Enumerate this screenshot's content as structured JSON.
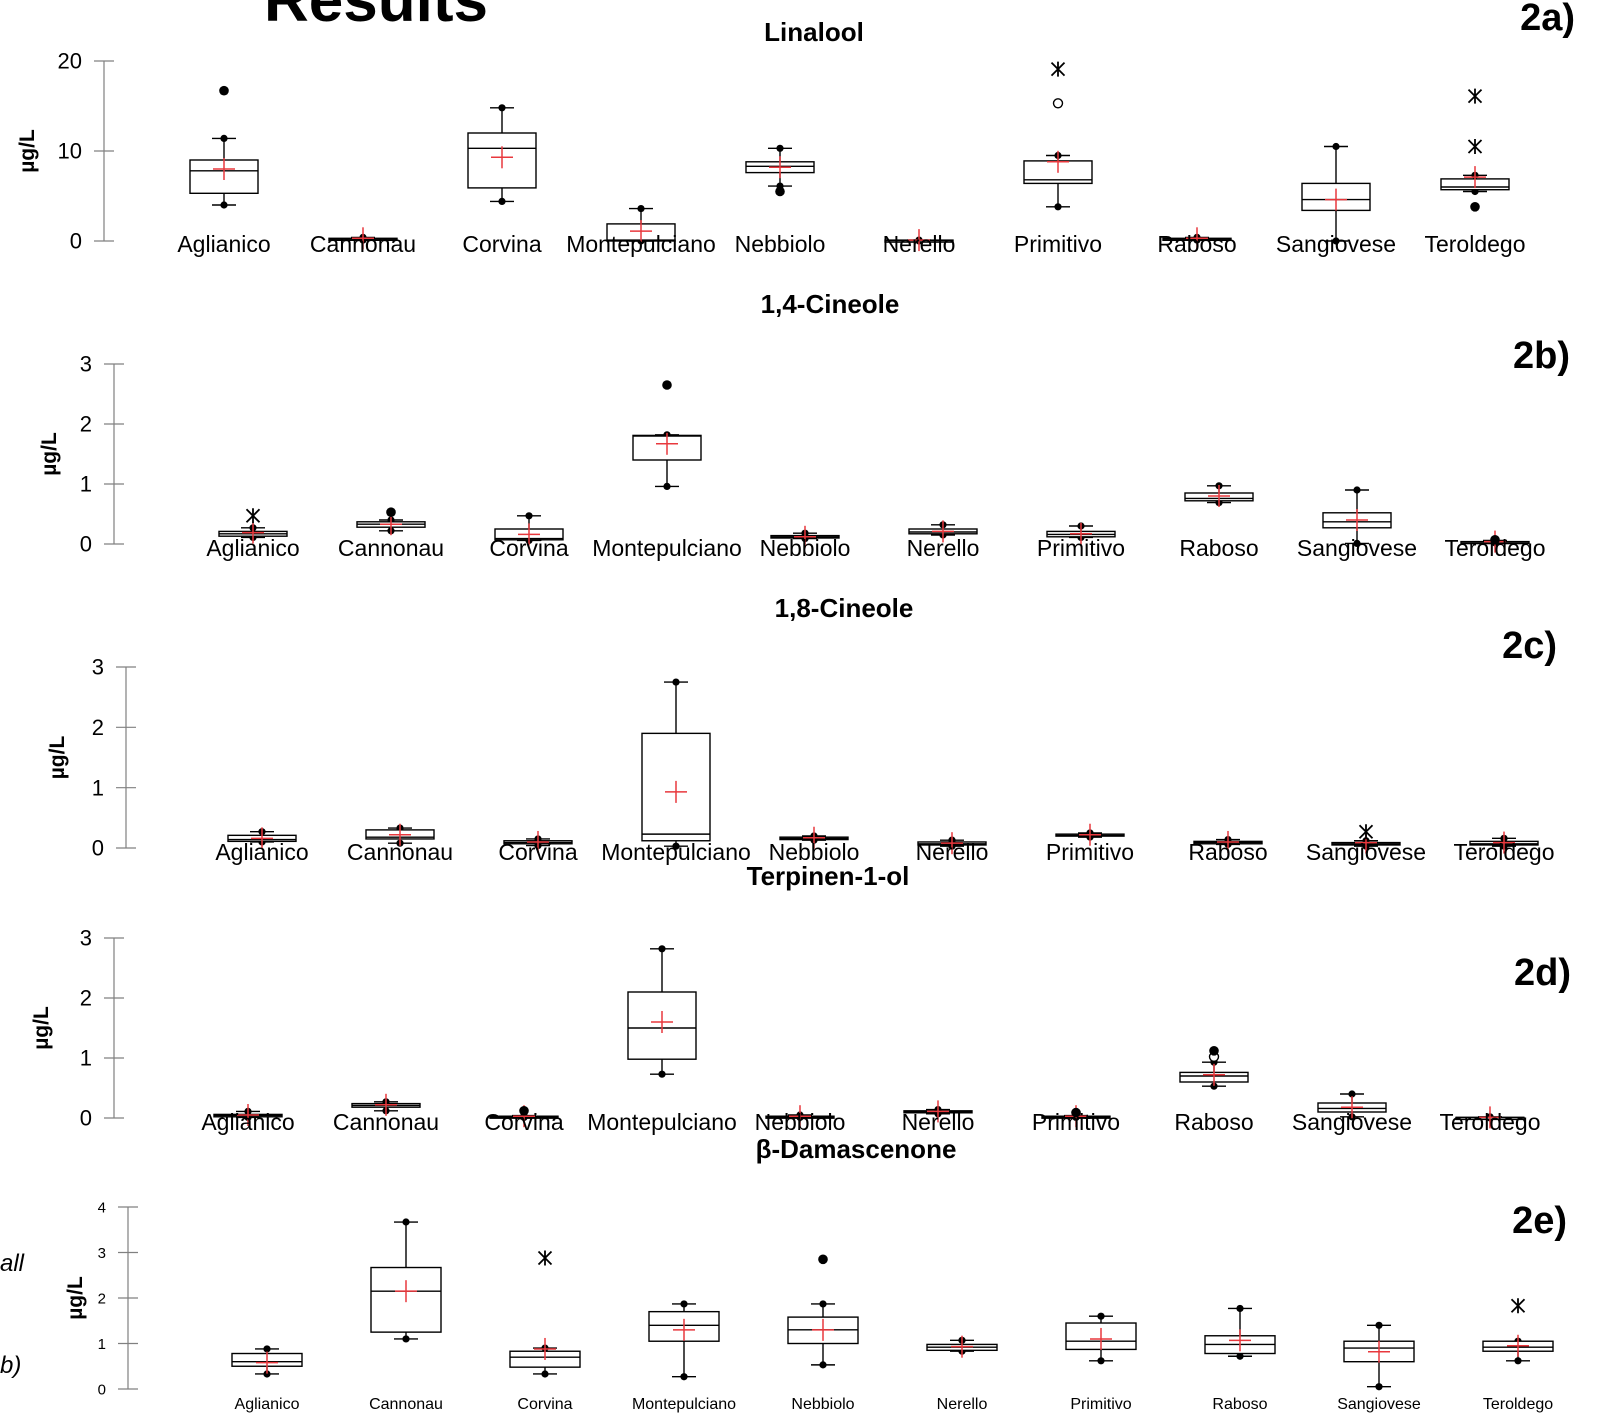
{
  "page": {
    "heading": "Results",
    "side_fragments": [
      "all",
      "b)"
    ]
  },
  "colors": {
    "box": "#000000",
    "mean": "#e8383d",
    "axis": "#808080"
  },
  "chart_data": [
    {
      "type": "box",
      "panel_label": "2a)",
      "title": "Linalool",
      "ylabel": "µg/L",
      "ylim": [
        0,
        20
      ],
      "yticks": [
        0,
        10,
        20
      ],
      "categories": [
        "Aglianico",
        "Cannonau",
        "Corvina",
        "Montepulciano",
        "Nebbiolo",
        "Nerello",
        "Primitivo",
        "Raboso",
        "Sangiovese",
        "Teroldego"
      ],
      "boxes": [
        {
          "min": 4.0,
          "q1": 5.3,
          "median": 7.8,
          "q3": 9.0,
          "max": 11.4,
          "mean": 8.0,
          "outliers": [
            {
              "v": 16.7,
              "m": "dot"
            }
          ]
        },
        {
          "min": 0.1,
          "q1": 0.15,
          "median": 0.2,
          "q3": 0.3,
          "max": 0.4,
          "mean": 0.3,
          "outliers": []
        },
        {
          "min": 4.4,
          "q1": 5.9,
          "median": 10.3,
          "q3": 12.0,
          "max": 14.8,
          "mean": 9.3,
          "outliers": []
        },
        {
          "min": 0.0,
          "q1": 0.0,
          "median": 0.1,
          "q3": 1.9,
          "max": 3.6,
          "mean": 1.1,
          "outliers": []
        },
        {
          "min": 6.1,
          "q1": 7.6,
          "median": 8.3,
          "q3": 8.8,
          "max": 10.3,
          "mean": 8.2,
          "outliers": [
            {
              "v": 5.5,
              "m": "dot"
            }
          ]
        },
        {
          "min": 0.0,
          "q1": 0.0,
          "median": 0.05,
          "q3": 0.1,
          "max": 0.1,
          "mean": 0.1,
          "outliers": []
        },
        {
          "min": 3.8,
          "q1": 6.4,
          "median": 6.8,
          "q3": 8.9,
          "max": 9.5,
          "mean": 8.8,
          "outliers": [
            {
              "v": 15.3,
              "m": "circle"
            },
            {
              "v": 19.1,
              "m": "star"
            }
          ]
        },
        {
          "min": 0.1,
          "q1": 0.15,
          "median": 0.2,
          "q3": 0.3,
          "max": 0.4,
          "mean": 0.3,
          "outliers": []
        },
        {
          "min": 0.0,
          "q1": 3.4,
          "median": 4.6,
          "q3": 6.4,
          "max": 10.5,
          "mean": 4.6,
          "outliers": []
        },
        {
          "min": 5.5,
          "q1": 5.7,
          "median": 6.0,
          "q3": 6.9,
          "max": 7.3,
          "mean": 7.1,
          "outliers": [
            {
              "v": 3.8,
              "m": "dot"
            },
            {
              "v": 10.5,
              "m": "star"
            },
            {
              "v": 16.1,
              "m": "star"
            }
          ]
        }
      ]
    },
    {
      "type": "box",
      "panel_label": "2b)",
      "title": "1,4-Cineole",
      "ylabel": "µg/L",
      "ylim": [
        0,
        3
      ],
      "yticks": [
        0,
        1,
        2,
        3
      ],
      "categories": [
        "Aglianico",
        "Cannonau",
        "Corvina",
        "Montepulciano",
        "Nebbiolo",
        "Nerello",
        "Primitivo",
        "Raboso",
        "Sangiovese",
        "Teroldego"
      ],
      "boxes": [
        {
          "min": 0.11,
          "q1": 0.13,
          "median": 0.17,
          "q3": 0.21,
          "max": 0.27,
          "mean": 0.19,
          "outliers": [
            {
              "v": 0.47,
              "m": "star"
            }
          ]
        },
        {
          "min": 0.22,
          "q1": 0.28,
          "median": 0.33,
          "q3": 0.37,
          "max": 0.4,
          "mean": 0.33,
          "outliers": [
            {
              "v": 0.53,
              "m": "dot"
            }
          ]
        },
        {
          "min": 0.06,
          "q1": 0.07,
          "median": 0.09,
          "q3": 0.25,
          "max": 0.47,
          "mean": 0.16,
          "outliers": []
        },
        {
          "min": 0.96,
          "q1": 1.4,
          "median": 1.8,
          "q3": 1.81,
          "max": 1.82,
          "mean": 1.67,
          "outliers": [
            {
              "v": 2.65,
              "m": "dot"
            }
          ]
        },
        {
          "min": 0.09,
          "q1": 0.1,
          "median": 0.12,
          "q3": 0.14,
          "max": 0.18,
          "mean": 0.12,
          "outliers": []
        },
        {
          "min": 0.15,
          "q1": 0.17,
          "median": 0.2,
          "q3": 0.25,
          "max": 0.32,
          "mean": 0.21,
          "outliers": []
        },
        {
          "min": 0.11,
          "q1": 0.12,
          "median": 0.16,
          "q3": 0.21,
          "max": 0.3,
          "mean": 0.17,
          "outliers": []
        },
        {
          "min": 0.69,
          "q1": 0.72,
          "median": 0.76,
          "q3": 0.85,
          "max": 0.97,
          "mean": 0.8,
          "outliers": []
        },
        {
          "min": 0.01,
          "q1": 0.27,
          "median": 0.37,
          "q3": 0.52,
          "max": 0.9,
          "mean": 0.4,
          "outliers": []
        },
        {
          "min": 0.02,
          "q1": 0.02,
          "median": 0.03,
          "q3": 0.04,
          "max": 0.06,
          "mean": 0.04,
          "outliers": [
            {
              "v": 0.07,
              "m": "dot"
            }
          ]
        }
      ]
    },
    {
      "type": "box",
      "panel_label": "2c)",
      "title": "1,8-Cineole",
      "ylabel": "µg/L",
      "ylim": [
        0,
        3
      ],
      "yticks": [
        0,
        1,
        2,
        3
      ],
      "categories": [
        "Aglianico",
        "Cannonau",
        "Corvina",
        "Montepulciano",
        "Nebbiolo",
        "Nerello",
        "Primitivo",
        "Raboso",
        "Sangiovese",
        "Teroldego"
      ],
      "boxes": [
        {
          "min": 0.1,
          "q1": 0.11,
          "median": 0.14,
          "q3": 0.21,
          "max": 0.27,
          "mean": 0.16,
          "outliers": []
        },
        {
          "min": 0.08,
          "q1": 0.15,
          "median": 0.18,
          "q3": 0.3,
          "max": 0.33,
          "mean": 0.22,
          "outliers": []
        },
        {
          "min": 0.04,
          "q1": 0.07,
          "median": 0.09,
          "q3": 0.12,
          "max": 0.15,
          "mean": 0.1,
          "outliers": []
        },
        {
          "min": 0.03,
          "q1": 0.12,
          "median": 0.23,
          "q3": 1.9,
          "max": 2.75,
          "mean": 0.93,
          "outliers": []
        },
        {
          "min": 0.13,
          "q1": 0.14,
          "median": 0.16,
          "q3": 0.18,
          "max": 0.2,
          "mean": 0.17,
          "outliers": []
        },
        {
          "min": 0.03,
          "q1": 0.05,
          "median": 0.07,
          "q3": 0.1,
          "max": 0.13,
          "mean": 0.08,
          "outliers": []
        },
        {
          "min": 0.18,
          "q1": 0.2,
          "median": 0.21,
          "q3": 0.23,
          "max": 0.25,
          "mean": 0.22,
          "outliers": []
        },
        {
          "min": 0.06,
          "q1": 0.07,
          "median": 0.09,
          "q3": 0.11,
          "max": 0.14,
          "mean": 0.1,
          "outliers": []
        },
        {
          "min": 0.03,
          "q1": 0.05,
          "median": 0.07,
          "q3": 0.09,
          "max": 0.12,
          "mean": 0.09,
          "outliers": [
            {
              "v": 0.27,
              "m": "star"
            }
          ]
        },
        {
          "min": 0.03,
          "q1": 0.05,
          "median": 0.07,
          "q3": 0.11,
          "max": 0.16,
          "mean": 0.09,
          "outliers": []
        }
      ]
    },
    {
      "type": "box",
      "panel_label": "2d)",
      "title": "Terpinen-1-ol",
      "ylabel": "µg/L",
      "ylim": [
        0,
        3
      ],
      "yticks": [
        0,
        1,
        2,
        3
      ],
      "categories": [
        "Aglianico",
        "Cannonau",
        "Corvina",
        "Montepulciano",
        "Nebbiolo",
        "Nerello",
        "Primitivo",
        "Raboso",
        "Sangiovese",
        "Teroldego"
      ],
      "boxes": [
        {
          "min": 0.01,
          "q1": 0.02,
          "median": 0.04,
          "q3": 0.06,
          "max": 0.11,
          "mean": 0.05,
          "outliers": []
        },
        {
          "min": 0.12,
          "q1": 0.18,
          "median": 0.21,
          "q3": 0.24,
          "max": 0.27,
          "mean": 0.22,
          "outliers": []
        },
        {
          "min": 0.01,
          "q1": 0.01,
          "median": 0.02,
          "q3": 0.03,
          "max": 0.04,
          "mean": 0.03,
          "outliers": [
            {
              "v": 0.12,
              "m": "dot"
            }
          ]
        },
        {
          "min": 0.73,
          "q1": 0.98,
          "median": 1.5,
          "q3": 2.1,
          "max": 2.82,
          "mean": 1.6,
          "outliers": []
        },
        {
          "min": 0.01,
          "q1": 0.01,
          "median": 0.02,
          "q3": 0.03,
          "max": 0.05,
          "mean": 0.03,
          "outliers": []
        },
        {
          "min": 0.07,
          "q1": 0.09,
          "median": 0.1,
          "q3": 0.12,
          "max": 0.14,
          "mean": 0.11,
          "outliers": []
        },
        {
          "min": 0.01,
          "q1": 0.01,
          "median": 0.02,
          "q3": 0.03,
          "max": 0.04,
          "mean": 0.03,
          "outliers": [
            {
              "v": 0.09,
              "m": "dot"
            }
          ]
        },
        {
          "min": 0.53,
          "q1": 0.6,
          "median": 0.7,
          "q3": 0.76,
          "max": 0.93,
          "mean": 0.72,
          "outliers": [
            {
              "v": 1.02,
              "m": "circle"
            },
            {
              "v": 1.12,
              "m": "dot"
            }
          ]
        },
        {
          "min": 0.02,
          "q1": 0.1,
          "median": 0.16,
          "q3": 0.25,
          "max": 0.4,
          "mean": 0.18,
          "outliers": []
        },
        {
          "min": 0.0,
          "q1": 0.0,
          "median": 0.01,
          "q3": 0.01,
          "max": 0.02,
          "mean": 0.01,
          "outliers": []
        }
      ]
    },
    {
      "type": "box",
      "panel_label": "2e)",
      "title": "β-Damascenone",
      "ylabel": "µg/L",
      "ylim": [
        0,
        4
      ],
      "yticks": [
        0,
        1,
        2,
        3,
        4
      ],
      "categories": [
        "Aglianico",
        "Cannonau",
        "Corvina",
        "Montepulciano",
        "Nebbiolo",
        "Nerello",
        "Primitivo",
        "Raboso",
        "Sangiovese",
        "Teroldego"
      ],
      "boxes": [
        {
          "min": 0.33,
          "q1": 0.5,
          "median": 0.6,
          "q3": 0.78,
          "max": 0.88,
          "mean": 0.58,
          "outliers": []
        },
        {
          "min": 1.1,
          "q1": 1.25,
          "median": 2.15,
          "q3": 2.67,
          "max": 3.67,
          "mean": 2.15,
          "outliers": []
        },
        {
          "min": 0.33,
          "q1": 0.48,
          "median": 0.7,
          "q3": 0.83,
          "max": 0.9,
          "mean": 0.88,
          "outliers": [
            {
              "v": 2.88,
              "m": "star"
            }
          ]
        },
        {
          "min": 0.27,
          "q1": 1.05,
          "median": 1.4,
          "q3": 1.7,
          "max": 1.87,
          "mean": 1.3,
          "outliers": []
        },
        {
          "min": 0.53,
          "q1": 1.0,
          "median": 1.3,
          "q3": 1.58,
          "max": 1.87,
          "mean": 1.3,
          "outliers": [
            {
              "v": 2.85,
              "m": "dot"
            }
          ]
        },
        {
          "min": 0.83,
          "q1": 0.85,
          "median": 0.92,
          "q3": 0.98,
          "max": 1.07,
          "mean": 0.93,
          "outliers": []
        },
        {
          "min": 0.62,
          "q1": 0.87,
          "median": 1.05,
          "q3": 1.45,
          "max": 1.6,
          "mean": 1.1,
          "outliers": []
        },
        {
          "min": 0.72,
          "q1": 0.78,
          "median": 0.98,
          "q3": 1.17,
          "max": 1.77,
          "mean": 1.07,
          "outliers": []
        },
        {
          "min": 0.05,
          "q1": 0.6,
          "median": 0.9,
          "q3": 1.05,
          "max": 1.4,
          "mean": 0.82,
          "outliers": []
        },
        {
          "min": 0.62,
          "q1": 0.83,
          "median": 0.92,
          "q3": 1.05,
          "max": 1.05,
          "mean": 0.95,
          "outliers": [
            {
              "v": 1.83,
              "m": "star"
            }
          ]
        }
      ]
    }
  ]
}
